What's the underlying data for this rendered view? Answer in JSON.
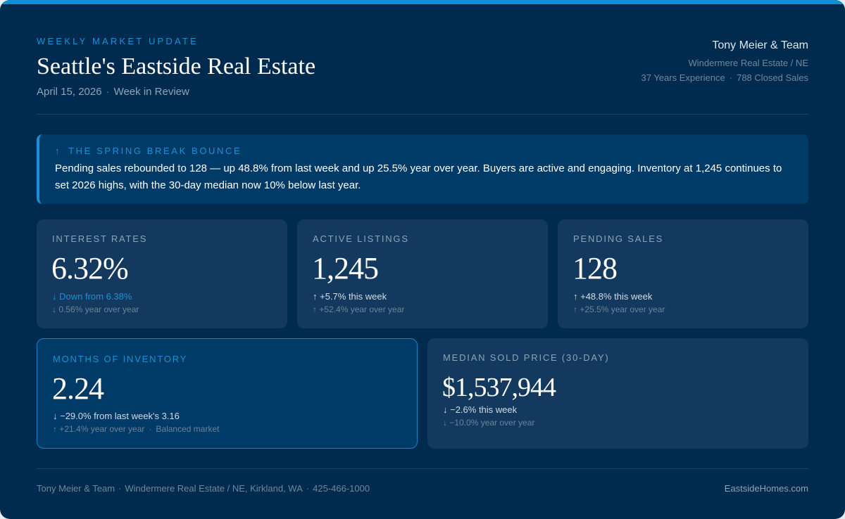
{
  "header": {
    "eyebrow": "WEEKLY MARKET UPDATE",
    "title": "Seattle's Eastside Real Estate",
    "date": "April 15, 2026",
    "subtitle": "Week in Review"
  },
  "agent": {
    "name": "Tony Meier & Team",
    "brokerage": "Windermere Real Estate / NE",
    "experience": "37 Years Experience",
    "closed_sales": "788 Closed Sales"
  },
  "alert": {
    "icon": "arrow-up",
    "headline": "THE SPRING BREAK BOUNCE",
    "body": "Pending sales rebounded to 128 — up 48.8% from last week and up 25.5% year over year. Buyers are active and engaging. Inventory at 1,245 continues to set 2026 highs, with the 30-day median now 10% below last year."
  },
  "metrics": {
    "interest_rates": {
      "label": "INTEREST RATES",
      "value": "6.32%",
      "change": "↓ Down from 6.38%",
      "yoy": "↓ 0.56% year over year"
    },
    "active_listings": {
      "label": "ACTIVE LISTINGS",
      "value": "1,245",
      "change": "↑ +5.7% this week",
      "yoy": "↑ +52.4% year over year"
    },
    "pending_sales": {
      "label": "PENDING SALES",
      "value": "128",
      "change": "↑ +48.8% this week",
      "yoy": "↑ +25.5% year over year"
    },
    "months_inventory": {
      "label": "MONTHS OF INVENTORY",
      "value": "2.24",
      "change": "↓ −29.0% from last week's 3.16",
      "yoy": "↑ +21.4% year over year",
      "note": "Balanced market"
    },
    "median_price": {
      "label": "MEDIAN SOLD PRICE (30-DAY)",
      "value": "$1,537,944",
      "change": "↓ −2.6% this week",
      "yoy": "↓ −10.0% year over year"
    }
  },
  "footer": {
    "team": "Tony Meier & Team",
    "office": "Windermere Real Estate / NE, Kirkland, WA",
    "phone": "425-466-1000",
    "website": "EastsideHomes.com"
  },
  "colors": {
    "background": "#002b4e",
    "accent": "#1a91d4",
    "card": "#133a5e",
    "highlight_card": "#003a66"
  }
}
